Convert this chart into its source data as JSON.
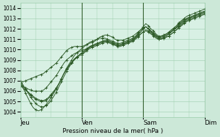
{
  "title": "",
  "xlabel": "Pression niveau de la mer( hPa )",
  "ylabel": "",
  "bg_color": "#cce8d8",
  "plot_bg_color": "#d8f0e4",
  "grid_color": "#99ccaa",
  "line_color": "#2d5a27",
  "ylim": [
    1003.5,
    1014.5
  ],
  "yticks": [
    1004,
    1005,
    1006,
    1007,
    1008,
    1009,
    1010,
    1011,
    1012,
    1013,
    1014
  ],
  "day_labels": [
    "Jeu",
    "Ven",
    "Sam",
    "Dim"
  ],
  "day_positions": [
    0,
    24,
    48,
    72
  ],
  "vline_positions": [
    24,
    48,
    72
  ],
  "num_steps": 73,
  "lines": [
    [
      1006.8,
      1006.9,
      1007.0,
      1007.1,
      1007.2,
      1007.3,
      1007.4,
      1007.5,
      1007.6,
      1007.7,
      1007.9,
      1008.1,
      1008.3,
      1008.5,
      1008.7,
      1009.0,
      1009.3,
      1009.6,
      1009.9,
      1010.1,
      1010.2,
      1010.3,
      1010.3,
      1010.3,
      1010.3,
      1010.4,
      1010.5,
      1010.6,
      1010.7,
      1010.8,
      1011.0,
      1011.2,
      1011.3,
      1011.4,
      1011.4,
      1011.3,
      1011.2,
      1011.0,
      1010.9,
      1010.9,
      1010.9,
      1011.0,
      1011.1,
      1011.2,
      1011.3,
      1011.5,
      1011.7,
      1011.9,
      1012.1,
      1012.2,
      1012.0,
      1011.8,
      1011.5,
      1011.3,
      1011.2,
      1011.3,
      1011.4,
      1011.5,
      1011.6,
      1011.8,
      1012.0,
      1012.2,
      1012.5,
      1012.7,
      1012.9,
      1013.0,
      1013.1,
      1013.2,
      1013.3,
      1013.4,
      1013.5,
      1013.6,
      1013.7
    ],
    [
      1006.5,
      1006.4,
      1006.3,
      1006.2,
      1006.1,
      1006.0,
      1006.0,
      1006.0,
      1006.0,
      1006.1,
      1006.3,
      1006.6,
      1006.9,
      1007.2,
      1007.5,
      1007.9,
      1008.3,
      1008.7,
      1009.0,
      1009.2,
      1009.4,
      1009.6,
      1009.7,
      1009.8,
      1009.9,
      1010.0,
      1010.1,
      1010.2,
      1010.3,
      1010.4,
      1010.5,
      1010.6,
      1010.7,
      1010.8,
      1010.8,
      1010.7,
      1010.6,
      1010.5,
      1010.4,
      1010.4,
      1010.5,
      1010.6,
      1010.7,
      1010.8,
      1010.9,
      1011.1,
      1011.3,
      1011.5,
      1011.7,
      1011.8,
      1011.7,
      1011.5,
      1011.3,
      1011.1,
      1011.0,
      1011.0,
      1011.1,
      1011.2,
      1011.3,
      1011.5,
      1011.7,
      1011.9,
      1012.1,
      1012.3,
      1012.5,
      1012.7,
      1012.8,
      1012.9,
      1013.0,
      1013.1,
      1013.2,
      1013.3,
      1013.4
    ],
    [
      1006.5,
      1006.3,
      1006.1,
      1005.9,
      1005.7,
      1005.5,
      1005.3,
      1005.2,
      1005.1,
      1005.1,
      1005.2,
      1005.4,
      1005.7,
      1006.0,
      1006.3,
      1006.7,
      1007.2,
      1007.7,
      1008.1,
      1008.4,
      1008.7,
      1009.0,
      1009.2,
      1009.4,
      1009.5,
      1009.7,
      1009.9,
      1010.1,
      1010.2,
      1010.3,
      1010.4,
      1010.5,
      1010.6,
      1010.7,
      1010.7,
      1010.6,
      1010.5,
      1010.4,
      1010.3,
      1010.3,
      1010.4,
      1010.5,
      1010.6,
      1010.7,
      1010.8,
      1011.0,
      1011.2,
      1011.5,
      1011.7,
      1011.9,
      1011.8,
      1011.6,
      1011.4,
      1011.2,
      1011.0,
      1011.0,
      1011.1,
      1011.2,
      1011.3,
      1011.5,
      1011.7,
      1011.9,
      1012.2,
      1012.4,
      1012.6,
      1012.8,
      1012.9,
      1013.0,
      1013.1,
      1013.2,
      1013.3,
      1013.4,
      1013.5
    ],
    [
      1006.8,
      1006.5,
      1006.2,
      1005.9,
      1005.6,
      1005.4,
      1005.2,
      1005.1,
      1005.0,
      1005.0,
      1005.1,
      1005.3,
      1005.6,
      1005.9,
      1006.3,
      1006.7,
      1007.2,
      1007.7,
      1008.1,
      1008.5,
      1008.8,
      1009.1,
      1009.3,
      1009.5,
      1009.6,
      1009.8,
      1010.0,
      1010.2,
      1010.4,
      1010.5,
      1010.6,
      1010.7,
      1010.8,
      1010.9,
      1010.9,
      1010.8,
      1010.7,
      1010.6,
      1010.5,
      1010.5,
      1010.6,
      1010.7,
      1010.8,
      1010.9,
      1011.0,
      1011.2,
      1011.5,
      1011.7,
      1012.0,
      1012.2,
      1012.0,
      1011.8,
      1011.6,
      1011.4,
      1011.2,
      1011.2,
      1011.3,
      1011.4,
      1011.5,
      1011.7,
      1011.9,
      1012.1,
      1012.3,
      1012.5,
      1012.7,
      1012.9,
      1013.0,
      1013.1,
      1013.2,
      1013.3,
      1013.4,
      1013.5,
      1013.6
    ],
    [
      1007.0,
      1006.6,
      1006.2,
      1005.8,
      1005.4,
      1005.1,
      1004.8,
      1004.6,
      1004.5,
      1004.5,
      1004.6,
      1004.8,
      1005.1,
      1005.5,
      1005.9,
      1006.4,
      1006.9,
      1007.4,
      1007.9,
      1008.3,
      1008.7,
      1009.0,
      1009.3,
      1009.5,
      1009.7,
      1009.9,
      1010.1,
      1010.3,
      1010.4,
      1010.5,
      1010.6,
      1010.7,
      1010.8,
      1010.8,
      1010.8,
      1010.7,
      1010.6,
      1010.5,
      1010.4,
      1010.4,
      1010.5,
      1010.6,
      1010.7,
      1010.8,
      1010.9,
      1011.2,
      1011.4,
      1011.7,
      1012.0,
      1012.2,
      1012.0,
      1011.7,
      1011.5,
      1011.3,
      1011.1,
      1011.1,
      1011.2,
      1011.3,
      1011.5,
      1011.7,
      1011.9,
      1012.1,
      1012.4,
      1012.6,
      1012.8,
      1013.0,
      1013.1,
      1013.2,
      1013.3,
      1013.4,
      1013.5,
      1013.6,
      1013.7
    ],
    [
      1006.8,
      1006.3,
      1005.8,
      1005.3,
      1004.8,
      1004.4,
      1004.2,
      1004.1,
      1004.2,
      1004.4,
      1004.7,
      1005.0,
      1005.4,
      1005.8,
      1006.2,
      1006.7,
      1007.2,
      1007.7,
      1008.2,
      1008.6,
      1009.0,
      1009.4,
      1009.7,
      1009.9,
      1010.1,
      1010.3,
      1010.5,
      1010.7,
      1010.8,
      1010.9,
      1011.0,
      1011.1,
      1011.1,
      1011.1,
      1011.0,
      1010.9,
      1010.8,
      1010.7,
      1010.6,
      1010.6,
      1010.7,
      1010.8,
      1010.9,
      1011.0,
      1011.1,
      1011.3,
      1011.6,
      1011.9,
      1012.2,
      1012.5,
      1012.3,
      1012.0,
      1011.8,
      1011.5,
      1011.3,
      1011.3,
      1011.4,
      1011.5,
      1011.7,
      1011.9,
      1012.1,
      1012.3,
      1012.6,
      1012.8,
      1013.0,
      1013.2,
      1013.3,
      1013.4,
      1013.5,
      1013.6,
      1013.7,
      1013.8,
      1013.9
    ]
  ]
}
